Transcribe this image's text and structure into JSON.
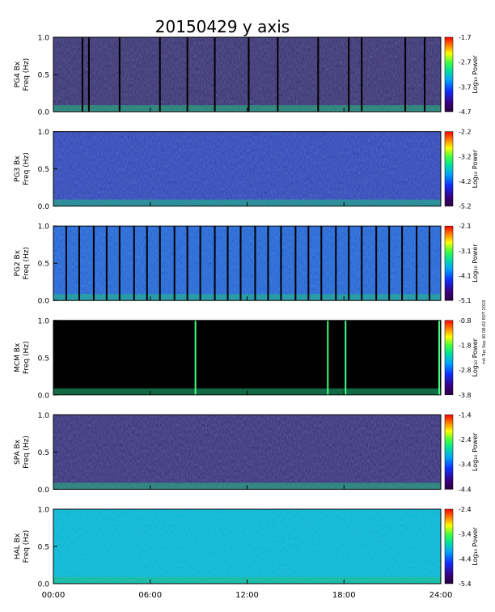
{
  "chart_data": {
    "type": "heatmap",
    "title": "20150429 y axis",
    "xlabel": "",
    "x_ticks": [
      "00:00",
      "06:00",
      "12:00",
      "18:00",
      "24:00"
    ],
    "x_range_hours": [
      0,
      24
    ],
    "y_ticks": [
      "0.0",
      "0.5",
      "1.0"
    ],
    "ylim": [
      0,
      1.0
    ],
    "ylabel_freq": "Freq (Hz)",
    "colorbar_label": "Log₁₀ Power",
    "side_note": "mit Tue Sep 30 08:02 EDT 2019",
    "colormap": [
      "#2a0040",
      "#3a0080",
      "#1030ff",
      "#00a0ff",
      "#00e0a0",
      "#40ff40",
      "#ffff00",
      "#ff8000",
      "#ff0000"
    ],
    "panels": [
      {
        "station": "PG4 Bx",
        "colorbar_ticks": [
          "-1.7",
          "-2.7",
          "-3.7",
          "-4.7"
        ],
        "clim": [
          -4.7,
          -1.7
        ],
        "background": "#3a2a66",
        "dropout_lines_hours": [
          1.8,
          2.2,
          4.1,
          6.6,
          8.3,
          10.0,
          12.1,
          13.9,
          16.4,
          18.3,
          19.1,
          21.8,
          23.0
        ]
      },
      {
        "station": "PG3 Bx",
        "colorbar_ticks": [
          "-2.2",
          "-3.2",
          "-4.2",
          "-5.2"
        ],
        "clim": [
          -5.2,
          -2.2
        ],
        "background": "#3040b0",
        "dropout_lines_hours": []
      },
      {
        "station": "PG2 Bx",
        "colorbar_ticks": [
          "-2.1",
          "-3.1",
          "-4.1",
          "-5.1"
        ],
        "clim": [
          -5.1,
          -2.1
        ],
        "background": "#2060d0",
        "dropout_lines_hours": [
          0.8,
          1.6,
          2.5,
          3.3,
          4.1,
          5.0,
          5.8,
          6.6,
          7.5,
          8.3,
          9.1,
          10.0,
          10.8,
          11.6,
          12.5,
          13.3,
          14.1,
          15.0,
          15.8,
          16.6,
          17.5,
          18.3,
          19.1,
          20.0,
          20.8,
          21.6,
          22.5,
          23.3
        ]
      },
      {
        "station": "MCM Bx",
        "colorbar_ticks": [
          "-0.8",
          "-1.8",
          "-2.8",
          "-3.8"
        ],
        "clim": [
          -3.8,
          -0.8
        ],
        "background": "#000000",
        "dropout_lines_hours": [
          8.8,
          17.0,
          18.1,
          23.9
        ]
      },
      {
        "station": "SPA Bx",
        "colorbar_ticks": [
          "-1.4",
          "-2.4",
          "-3.4",
          "-4.4"
        ],
        "clim": [
          -4.4,
          -1.4
        ],
        "background": "#3a2a70",
        "dropout_lines_hours": []
      },
      {
        "station": "HAL Bx",
        "colorbar_ticks": [
          "-2.4",
          "-3.4",
          "-4.4",
          "-5.4"
        ],
        "clim": [
          -5.4,
          -2.4
        ],
        "background": "#00b8d0",
        "dropout_lines_hours": []
      }
    ]
  }
}
